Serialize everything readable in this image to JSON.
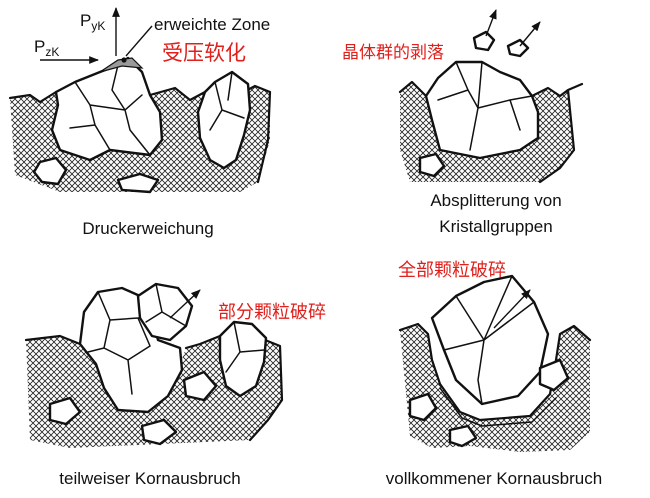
{
  "panels": {
    "a": {
      "caption": "Druckerweichung",
      "force_vertical": {
        "main": "P",
        "sub": "yK"
      },
      "force_horizontal": {
        "main": "P",
        "sub": "zK"
      },
      "annotation_de": "erweichte Zone",
      "annotation_cn": "受压软化"
    },
    "b": {
      "caption_line1": "Absplitterung von",
      "caption_line2": "Kristallgruppen",
      "annotation_cn": "晶体群的剥落"
    },
    "c": {
      "caption": "teilweiser Kornausbruch",
      "annotation_cn": "部分颗粒破碎"
    },
    "d": {
      "caption": "vollkommener Kornausbruch",
      "annotation_cn": "全部颗粒破碎"
    }
  }
}
